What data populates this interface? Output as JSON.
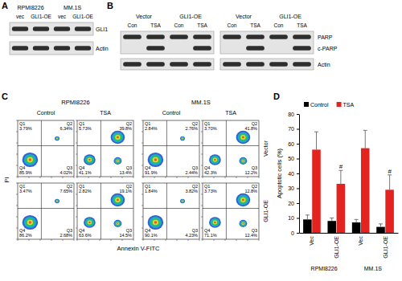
{
  "panels": [
    "A",
    "B",
    "C",
    "D"
  ],
  "blot_a": {
    "groups": [
      "RPMI8226",
      "MM.1S"
    ],
    "lanes": [
      "vec",
      "GLI1-OE",
      "vec",
      "GLI1-OE"
    ],
    "membranes": [
      [
        {
          "label": "GLI1",
          "bands": [
            true,
            true,
            true,
            true
          ]
        }
      ],
      [
        {
          "label": "Actin",
          "bands": [
            true,
            true,
            true,
            true
          ]
        }
      ]
    ]
  },
  "blot_b": {
    "blots": [
      {
        "groups": [
          "Vector",
          "GLI1-OE"
        ],
        "lanes": [
          "Con",
          "TSA",
          "Con",
          "TSA"
        ]
      },
      {
        "groups": [
          "Vector",
          "GLI1-OE"
        ],
        "lanes": [
          "Con",
          "TSA",
          "Con",
          "TSA"
        ]
      }
    ],
    "membranes": [
      [
        {
          "label": "PARP",
          "bands": [
            true,
            true,
            true,
            true,
            true,
            true,
            true,
            true
          ]
        },
        {
          "label": "c-PARP",
          "bands": [
            false,
            true,
            false,
            true,
            false,
            true,
            false,
            true
          ]
        }
      ],
      [
        {
          "label": "Actin",
          "bands": [
            true,
            true,
            true,
            true,
            true,
            true,
            true,
            true
          ]
        }
      ]
    ]
  },
  "flow": {
    "groups": [
      "RPMI8226",
      "MM.1S"
    ],
    "conditions": [
      "Control",
      "TSA",
      "Control",
      "TSA"
    ],
    "rows": [
      "Vector",
      "GLI1-OE"
    ],
    "x_label": "Annexin V-FITC",
    "y_label": "PI",
    "plots": [
      [
        {
          "quadrants": [
            {
              "label": "Q1",
              "text": "3.79%"
            },
            {
              "label": "Q2",
              "text": "6.34%"
            },
            {
              "label": "Q3",
              "text": "4.02%"
            },
            {
              "label": "Q4",
              "text": "85.9%"
            }
          ]
        },
        {
          "quadrants": [
            {
              "label": "Q1",
              "text": "5.73%"
            },
            {
              "label": "Q2",
              "text": "39.8%"
            },
            {
              "label": "Q3",
              "text": "13.4%"
            },
            {
              "label": "Q4",
              "text": "41.1%"
            }
          ]
        },
        {
          "quadrants": [
            {
              "label": "Q1",
              "text": "2.84%"
            },
            {
              "label": "Q2",
              "text": "2.76%"
            },
            {
              "label": "Q3",
              "text": "2.44%"
            },
            {
              "label": "Q4",
              "text": "91.9%"
            }
          ]
        },
        {
          "quadrants": [
            {
              "label": "Q1",
              "text": "3.70%"
            },
            {
              "label": "Q2",
              "text": "41.8%"
            },
            {
              "label": "Q3",
              "text": "12.2%"
            },
            {
              "label": "Q4",
              "text": "42.3%"
            }
          ]
        }
      ],
      [
        {
          "quadrants": [
            {
              "label": "Q1",
              "text": "3.47%"
            },
            {
              "label": "Q2",
              "text": "7.65%"
            },
            {
              "label": "Q3",
              "text": "2.68%"
            },
            {
              "label": "Q4",
              "text": "86.2%"
            }
          ]
        },
        {
          "quadrants": [
            {
              "label": "Q1",
              "text": "2.82%"
            },
            {
              "label": "Q2",
              "text": "19.1%"
            },
            {
              "label": "Q3",
              "text": "14.5%"
            },
            {
              "label": "Q4",
              "text": "63.6%"
            }
          ]
        },
        {
          "quadrants": [
            {
              "label": "Q1",
              "text": "1.84%"
            },
            {
              "label": "Q2",
              "text": "3.82%"
            },
            {
              "label": "Q3",
              "text": "4.23%"
            },
            {
              "label": "Q4",
              "text": "90.1%"
            }
          ]
        },
        {
          "quadrants": [
            {
              "label": "Q1",
              "text": "3.73%"
            },
            {
              "label": "Q2",
              "text": "12.8%"
            },
            {
              "label": "Q3",
              "text": "12.4%"
            },
            {
              "label": "Q4",
              "text": "71.1%"
            }
          ]
        }
      ]
    ]
  },
  "chart_data": {
    "type": "bar",
    "y_label": "Apoptotic cells (%)",
    "categories": [
      "Vec",
      "GLI1-OE",
      "Vec",
      "GLI1-OE"
    ],
    "groups": [
      "RPMI8226",
      "MM.1S"
    ],
    "series": [
      {
        "name": "Control",
        "color": "#000000",
        "values": [
          9,
          8,
          7,
          4
        ],
        "errors": [
          3,
          2,
          2,
          2
        ]
      },
      {
        "name": "TSA",
        "color": "#e3231f",
        "values": [
          56,
          33,
          57,
          29
        ],
        "errors": [
          12,
          9,
          12,
          10
        ],
        "annotations": [
          null,
          "#",
          null,
          "#"
        ]
      }
    ],
    "ylim": [
      0,
      80
    ],
    "yticks": [
      0,
      10,
      20,
      30,
      40,
      50,
      60,
      70,
      80
    ],
    "legend": "top"
  }
}
